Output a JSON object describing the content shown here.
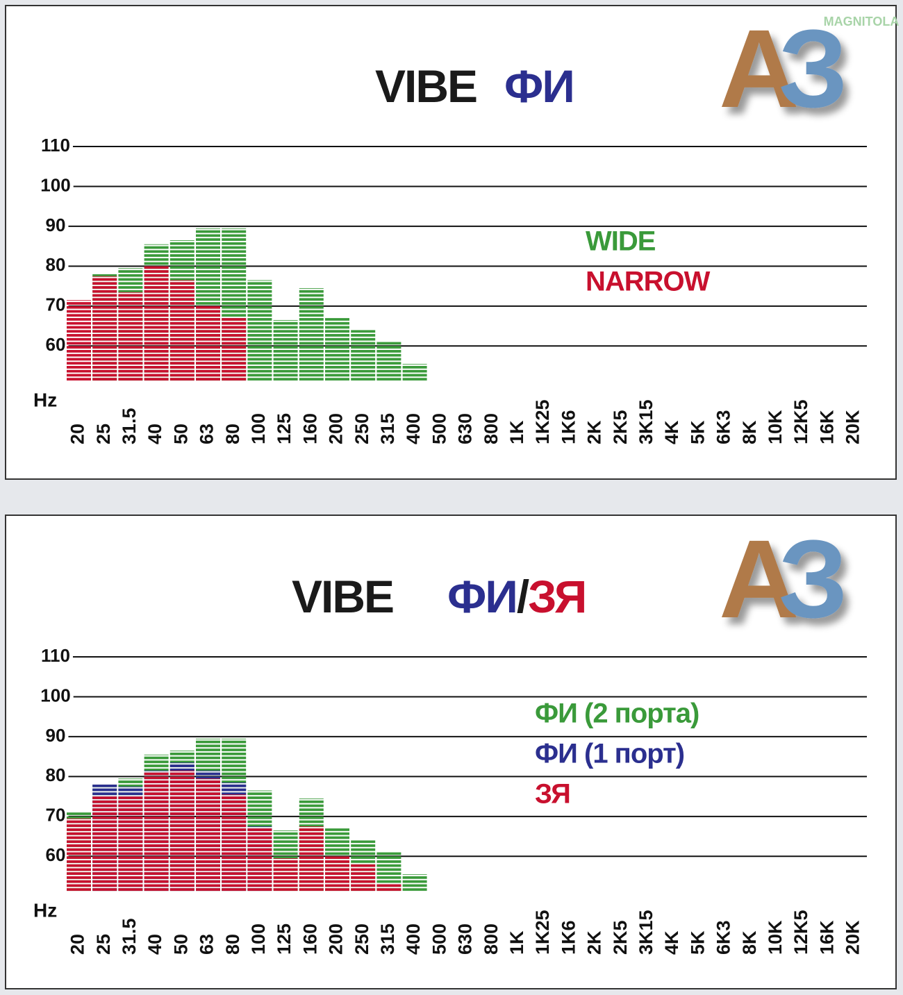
{
  "watermark": "MAGNITOLA",
  "chart_data": [
    {
      "type": "bar",
      "title": [
        {
          "text": "VIBE",
          "color": "#1a1a1a"
        },
        {
          "text": "ФИ",
          "color": "#2b2f8f"
        }
      ],
      "logo": [
        {
          "text": "А",
          "color": "#b07a48"
        },
        {
          "text": "З",
          "color": "#6b95c0"
        }
      ],
      "x_label": "Hz",
      "categories": [
        "20",
        "25",
        "31.5",
        "40",
        "50",
        "63",
        "80",
        "100",
        "125",
        "160",
        "200",
        "250",
        "315",
        "400",
        "500",
        "630",
        "800",
        "1K",
        "1K25",
        "1K6",
        "2K",
        "2K5",
        "3K15",
        "4K",
        "5K",
        "6K3",
        "8K",
        "10K",
        "12K5",
        "16K",
        "20K"
      ],
      "ylim": [
        51,
        110
      ],
      "yticks": [
        60,
        70,
        80,
        90,
        100,
        110
      ],
      "grid": true,
      "series": [
        {
          "name": "WIDE",
          "color": "#3a9a3a",
          "values": [
            null,
            78,
            79.5,
            85.5,
            86.5,
            89.5,
            89.5,
            76.5,
            66.5,
            74.5,
            67,
            64,
            61,
            55.5,
            null,
            null,
            null,
            null,
            null,
            null,
            null,
            null,
            null,
            null,
            null,
            null,
            null,
            null,
            null,
            null,
            null
          ]
        },
        {
          "name": "NARROW",
          "color": "#c8102e",
          "values": [
            71.5,
            77.5,
            73.5,
            80,
            76.5,
            70,
            67,
            null,
            null,
            null,
            null,
            null,
            null,
            null,
            null,
            null,
            null,
            null,
            null,
            null,
            null,
            null,
            null,
            null,
            null,
            null,
            null,
            null,
            null,
            null,
            null
          ]
        }
      ]
    },
    {
      "type": "bar",
      "title": [
        {
          "text": "VIBE",
          "color": "#1a1a1a"
        },
        {
          "text": "ФИ",
          "color": "#2b2f8f"
        },
        {
          "text": "/",
          "color": "#1a1a1a"
        },
        {
          "text": "ЗЯ",
          "color": "#c8102e"
        }
      ],
      "logo": [
        {
          "text": "А",
          "color": "#b07a48"
        },
        {
          "text": "З",
          "color": "#6b95c0"
        }
      ],
      "x_label": "Hz",
      "categories": [
        "20",
        "25",
        "31.5",
        "40",
        "50",
        "63",
        "80",
        "100",
        "125",
        "160",
        "200",
        "250",
        "315",
        "400",
        "500",
        "630",
        "800",
        "1K",
        "1K25",
        "1K6",
        "2K",
        "2K5",
        "3K15",
        "4K",
        "5K",
        "6K3",
        "8K",
        "10K",
        "12K5",
        "16K",
        "20K"
      ],
      "ylim": [
        51,
        110
      ],
      "yticks": [
        60,
        70,
        80,
        90,
        100,
        110
      ],
      "grid": true,
      "series": [
        {
          "name": "ФИ (2 порта)",
          "color": "#3a9a3a",
          "values": [
            71,
            78,
            79.5,
            85.5,
            86.5,
            89.5,
            89.5,
            76.5,
            66.5,
            74.5,
            67,
            64,
            61,
            55.5,
            null,
            null,
            null,
            null,
            null,
            null,
            null,
            null,
            null,
            null,
            null,
            null,
            null,
            null,
            null,
            null,
            null
          ]
        },
        {
          "name": "ФИ (1 порт)",
          "color": "#2b2f8f",
          "values": [
            null,
            78,
            77.5,
            81.5,
            83.5,
            81.5,
            78.5,
            67.5,
            null,
            null,
            null,
            null,
            null,
            null,
            null,
            null,
            null,
            null,
            null,
            null,
            null,
            null,
            null,
            null,
            null,
            null,
            null,
            null,
            null,
            null,
            null
          ]
        },
        {
          "name": "ЗЯ",
          "color": "#c8102e",
          "values": [
            69.5,
            75,
            75,
            81,
            81.5,
            79.5,
            75.5,
            67,
            59.5,
            67.5,
            60,
            58,
            53,
            null,
            null,
            null,
            null,
            null,
            null,
            null,
            null,
            null,
            null,
            null,
            null,
            null,
            null,
            null,
            null,
            null,
            null
          ]
        }
      ]
    }
  ]
}
